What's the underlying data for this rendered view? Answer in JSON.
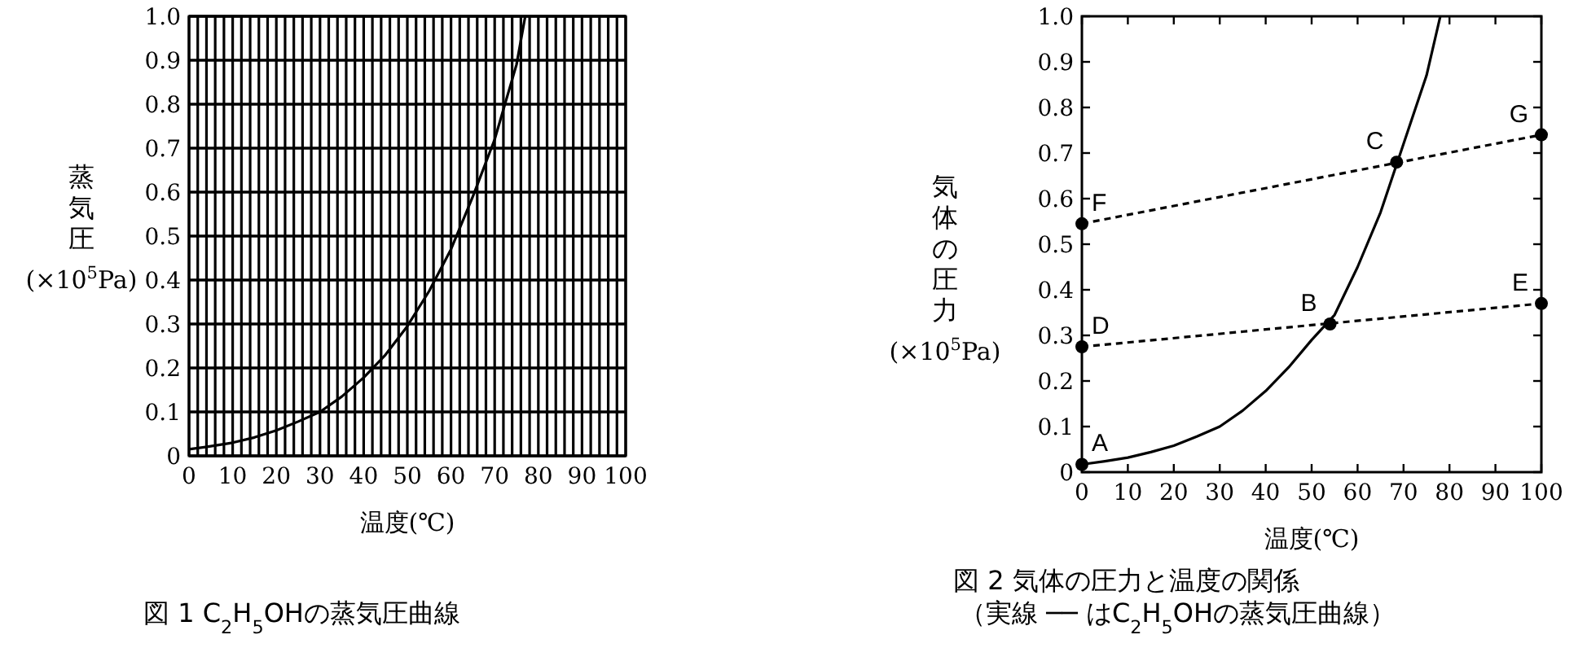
{
  "chart_data": [
    {
      "type": "line",
      "title": "図 1 C$_{2}$H$_{5}$OHの蒸気圧曲線",
      "xlabel": "温度(℃)",
      "ylabel": "蒸気圧 (×10$^{5}$Pa)",
      "xlim": [
        0,
        100
      ],
      "ylim": [
        0,
        1.0
      ],
      "xticks": [
        0,
        {
          "value": 2,
          "label": null
        },
        {
          "value": 4,
          "label": null
        },
        {
          "value": 6,
          "label": null
        },
        {
          "value": 8,
          "label": null
        },
        10,
        {
          "value": 12,
          "label": null
        },
        {
          "value": 14,
          "label": null
        },
        {
          "value": 16,
          "label": null
        },
        {
          "value": 18,
          "label": null
        },
        20,
        {
          "value": 22,
          "label": null
        },
        {
          "value": 24,
          "label": null
        },
        {
          "value": 26,
          "label": null
        },
        {
          "value": 28,
          "label": null
        },
        30,
        {
          "value": 32,
          "label": null
        },
        {
          "value": 34,
          "label": null
        },
        {
          "value": 36,
          "label": null
        },
        {
          "value": 38,
          "label": null
        },
        40,
        {
          "value": 42,
          "label": null
        },
        {
          "value": 44,
          "label": null
        },
        {
          "value": 46,
          "label": null
        },
        {
          "value": 48,
          "label": null
        },
        50,
        {
          "value": 52,
          "label": null
        },
        {
          "value": 54,
          "label": null
        },
        {
          "value": 56,
          "label": null
        },
        {
          "value": 58,
          "label": null
        },
        60,
        {
          "value": 62,
          "label": null
        },
        {
          "value": 64,
          "label": null
        },
        {
          "value": 66,
          "label": null
        },
        {
          "value": 68,
          "label": null
        },
        70,
        {
          "value": 72,
          "label": null
        },
        {
          "value": 74,
          "label": null
        },
        {
          "value": 76,
          "label": null
        },
        {
          "value": 78,
          "label": null
        },
        80,
        {
          "value": 82,
          "label": null
        },
        {
          "value": 84,
          "label": null
        },
        {
          "value": 86,
          "label": null
        },
        {
          "value": 88,
          "label": null
        },
        90,
        {
          "value": 92,
          "label": null
        },
        {
          "value": 94,
          "label": null
        },
        {
          "value": 96,
          "label": null
        },
        {
          "value": 98,
          "label": null
        },
        100
      ],
      "yticks": [
        0,
        0.1,
        0.2,
        0.3,
        0.4,
        0.5,
        0.6,
        0.7,
        0.8,
        0.9,
        {
          "value": 1.0,
          "label": "1.0"
        }
      ],
      "grid": true,
      "series": [
        {
          "color": "#000000",
          "x": [
            0,
            5,
            10,
            15,
            20,
            25,
            30,
            35,
            40,
            45,
            50,
            55,
            60,
            65,
            70,
            75,
            77
          ],
          "values": [
            0.015,
            0.022,
            0.03,
            0.042,
            0.058,
            0.078,
            0.1,
            0.135,
            0.178,
            0.23,
            0.295,
            0.375,
            0.47,
            0.59,
            0.72,
            0.89,
            1.0
          ]
        }
      ]
    },
    {
      "type": "line",
      "title": "図 2 気体の圧力と温度の関係",
      "subtitle": "（実線 ── はC$_{2}$H$_{5}$OHの蒸気圧曲線）",
      "xlabel": "温度(℃)",
      "ylabel": "気体の圧力 (×10$^{5}$Pa)",
      "xlim": [
        0,
        100
      ],
      "ylim": [
        0,
        1.0
      ],
      "xticks": [
        0,
        10,
        20,
        30,
        40,
        50,
        60,
        70,
        80,
        90,
        100
      ],
      "yticks": [
        0,
        0.1,
        0.2,
        0.3,
        0.4,
        0.5,
        0.6,
        0.7,
        0.8,
        0.9,
        {
          "value": 1.0,
          "label": "1.0"
        }
      ],
      "series": [
        {
          "color": "#000000",
          "x": [
            0,
            5,
            10,
            15,
            20,
            25,
            30,
            35,
            40,
            45,
            50,
            55,
            60,
            65,
            70,
            75,
            78
          ],
          "values": [
            0.017,
            0.024,
            0.032,
            0.044,
            0.058,
            0.078,
            0.1,
            0.135,
            0.178,
            0.23,
            0.29,
            0.345,
            0.45,
            0.57,
            0.72,
            0.87,
            1.0
          ]
        },
        {
          "color": "#000000",
          "line_style": "dashed",
          "x": [
            0,
            100
          ],
          "values": [
            0.275,
            0.37
          ]
        },
        {
          "color": "#000000",
          "line_style": "dashed",
          "x": [
            0,
            100
          ],
          "values": [
            0.545,
            0.74
          ]
        },
        {
          "type": "scatter",
          "color": "#000000",
          "marker": "circle",
          "x": [
            0,
            54,
            68.5,
            0,
            100,
            0,
            100
          ],
          "values": [
            0.017,
            0.325,
            0.68,
            0.275,
            0.37,
            0.545,
            0.74
          ]
        }
      ],
      "annotations": [
        {
          "text": "A",
          "x": 0,
          "y": 0.017
        },
        {
          "text": "B",
          "x": 54,
          "y": 0.325
        },
        {
          "text": "C",
          "x": 68.5,
          "y": 0.68
        },
        {
          "text": "D",
          "x": 0,
          "y": 0.275
        },
        {
          "text": "E",
          "x": 100,
          "y": 0.37
        },
        {
          "text": "F",
          "x": 0,
          "y": 0.545
        },
        {
          "text": "G",
          "x": 100,
          "y": 0.74
        }
      ]
    }
  ]
}
